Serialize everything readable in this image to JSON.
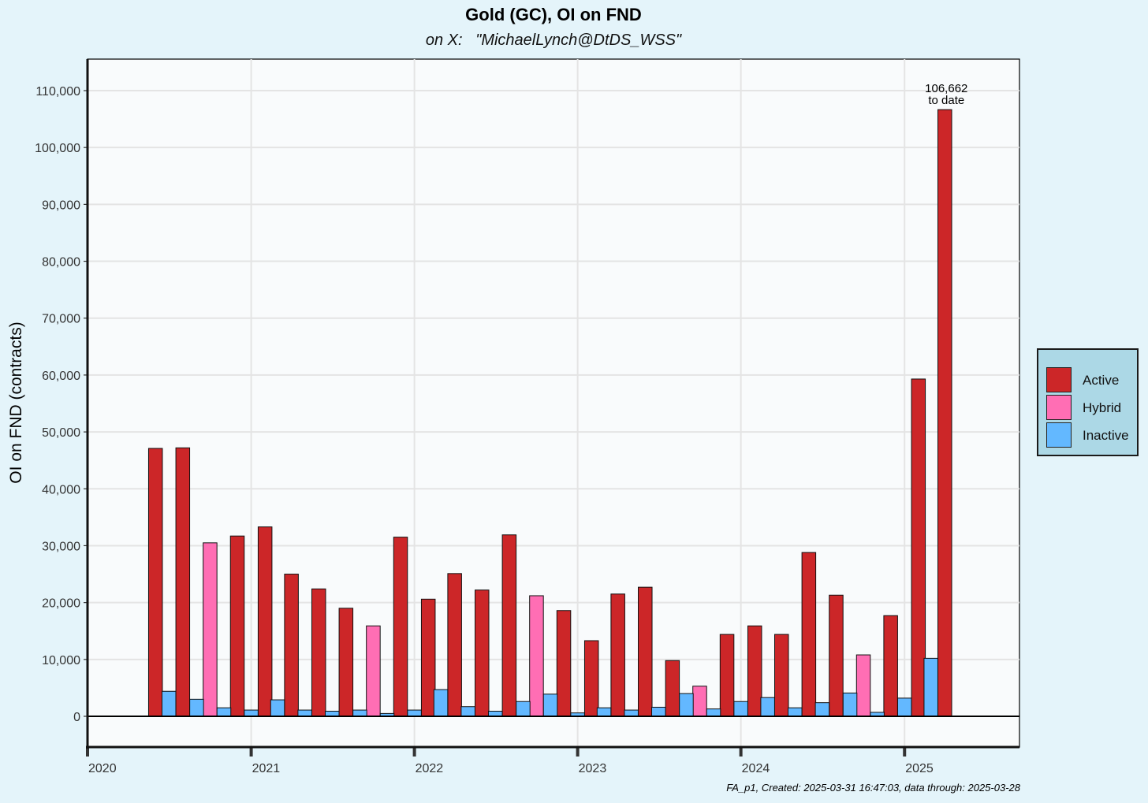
{
  "chart_data": {
    "type": "bar",
    "title": "Gold (GC), OI on FND",
    "subtitle": "on X:   \"MichaelLynch@DtDS_WSS\"",
    "ylabel": "OI on FND (contracts)",
    "xlabel": "",
    "ylim": [
      -5400,
      115000
    ],
    "y_ticks": [
      0,
      10000,
      20000,
      30000,
      40000,
      50000,
      60000,
      70000,
      80000,
      90000,
      100000,
      110000
    ],
    "y_tick_labels": [
      "0",
      "10,000",
      "20,000",
      "30,000",
      "40,000",
      "50,000",
      "60,000",
      "70,000",
      "80,000",
      "90,000",
      "100,000",
      "110,000"
    ],
    "x_ticks": [
      "2020",
      "2021",
      "2022",
      "2023",
      "2024",
      "2025"
    ],
    "x_range": [
      "2020-01-01",
      "2025-09-15"
    ],
    "grid": true,
    "legend_position": "right",
    "series_colors": {
      "Active": "#cc2628",
      "Hybrid": "#ff6eb4",
      "Inactive": "#63b8ff"
    },
    "series": [
      {
        "name": "Active",
        "points": [
          {
            "date": "2020-06-01",
            "value": 47100
          },
          {
            "date": "2020-08-01",
            "value": 47200
          },
          {
            "date": "2020-12-01",
            "value": 31700
          },
          {
            "date": "2021-02-01",
            "value": 33300
          },
          {
            "date": "2021-04-01",
            "value": 25000
          },
          {
            "date": "2021-06-01",
            "value": 22400
          },
          {
            "date": "2021-08-01",
            "value": 19000
          },
          {
            "date": "2021-12-01",
            "value": 31500
          },
          {
            "date": "2022-02-01",
            "value": 20600
          },
          {
            "date": "2022-04-01",
            "value": 25100
          },
          {
            "date": "2022-06-01",
            "value": 22200
          },
          {
            "date": "2022-08-01",
            "value": 31900
          },
          {
            "date": "2022-12-01",
            "value": 18600
          },
          {
            "date": "2023-02-01",
            "value": 13300
          },
          {
            "date": "2023-04-01",
            "value": 21500
          },
          {
            "date": "2023-06-01",
            "value": 22700
          },
          {
            "date": "2023-08-01",
            "value": 9800
          },
          {
            "date": "2023-12-01",
            "value": 14400
          },
          {
            "date": "2024-02-01",
            "value": 15900
          },
          {
            "date": "2024-04-01",
            "value": 14400
          },
          {
            "date": "2024-06-01",
            "value": 28800
          },
          {
            "date": "2024-08-01",
            "value": 21300
          },
          {
            "date": "2024-12-01",
            "value": 17700
          },
          {
            "date": "2025-02-01",
            "value": 59300
          },
          {
            "date": "2025-04-01",
            "value": 106662
          }
        ]
      },
      {
        "name": "Hybrid",
        "points": [
          {
            "date": "2020-10-01",
            "value": 30500
          },
          {
            "date": "2021-10-01",
            "value": 15900
          },
          {
            "date": "2022-10-01",
            "value": 21200
          },
          {
            "date": "2023-10-01",
            "value": 5300
          },
          {
            "date": "2024-10-01",
            "value": 10800
          }
        ]
      },
      {
        "name": "Inactive",
        "points": [
          {
            "date": "2020-07-01",
            "value": 4400
          },
          {
            "date": "2020-09-01",
            "value": 3000
          },
          {
            "date": "2020-11-01",
            "value": 1500
          },
          {
            "date": "2021-01-01",
            "value": 1100
          },
          {
            "date": "2021-03-01",
            "value": 2900
          },
          {
            "date": "2021-05-01",
            "value": 1100
          },
          {
            "date": "2021-07-01",
            "value": 900
          },
          {
            "date": "2021-09-01",
            "value": 1100
          },
          {
            "date": "2021-11-01",
            "value": 500
          },
          {
            "date": "2022-01-01",
            "value": 1100
          },
          {
            "date": "2022-03-01",
            "value": 4700
          },
          {
            "date": "2022-05-01",
            "value": 1700
          },
          {
            "date": "2022-07-01",
            "value": 900
          },
          {
            "date": "2022-09-01",
            "value": 2600
          },
          {
            "date": "2022-11-01",
            "value": 3900
          },
          {
            "date": "2023-01-01",
            "value": 600
          },
          {
            "date": "2023-03-01",
            "value": 1500
          },
          {
            "date": "2023-05-01",
            "value": 1100
          },
          {
            "date": "2023-07-01",
            "value": 1600
          },
          {
            "date": "2023-09-01",
            "value": 4000
          },
          {
            "date": "2023-11-01",
            "value": 1300
          },
          {
            "date": "2024-01-01",
            "value": 2600
          },
          {
            "date": "2024-03-01",
            "value": 3300
          },
          {
            "date": "2024-05-01",
            "value": 1500
          },
          {
            "date": "2024-07-01",
            "value": 2400
          },
          {
            "date": "2024-09-01",
            "value": 4100
          },
          {
            "date": "2024-11-01",
            "value": 700
          },
          {
            "date": "2025-01-01",
            "value": 3200
          },
          {
            "date": "2025-03-01",
            "value": 10200
          }
        ]
      }
    ],
    "annotation": {
      "date": "2025-04-01",
      "value": 106662,
      "lines": [
        "106,662",
        "to date"
      ]
    },
    "caption": "FA_p1, Created: 2025-03-31 16:47:03, data through: 2025-03-28"
  }
}
